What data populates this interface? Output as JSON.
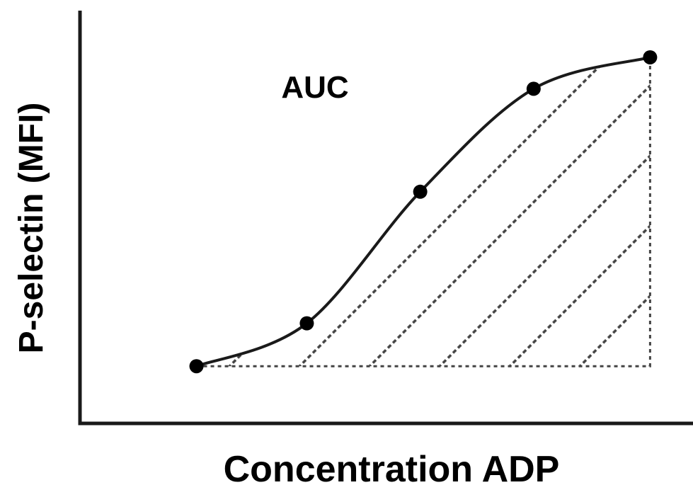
{
  "chart_data": {
    "type": "line",
    "title": "",
    "xlabel": "Concentration ADP",
    "ylabel": "P-selectin (MFI)",
    "annotation": "AUC",
    "ticks": false,
    "grid": false,
    "fill": "hatched area under curve",
    "xlim": [
      0,
      7.5
    ],
    "ylim": [
      0,
      7.0
    ],
    "series": [
      {
        "x": [
          1.9,
          3.7,
          5.55,
          7.4,
          9.3
        ],
        "y": [
          1.0,
          1.75,
          4.05,
          5.85,
          6.4
        ]
      }
    ],
    "colors": {
      "line": "#1a1a1a",
      "marker": "#000000",
      "hatch": "#444444",
      "axis": "#1a1a1a"
    }
  }
}
